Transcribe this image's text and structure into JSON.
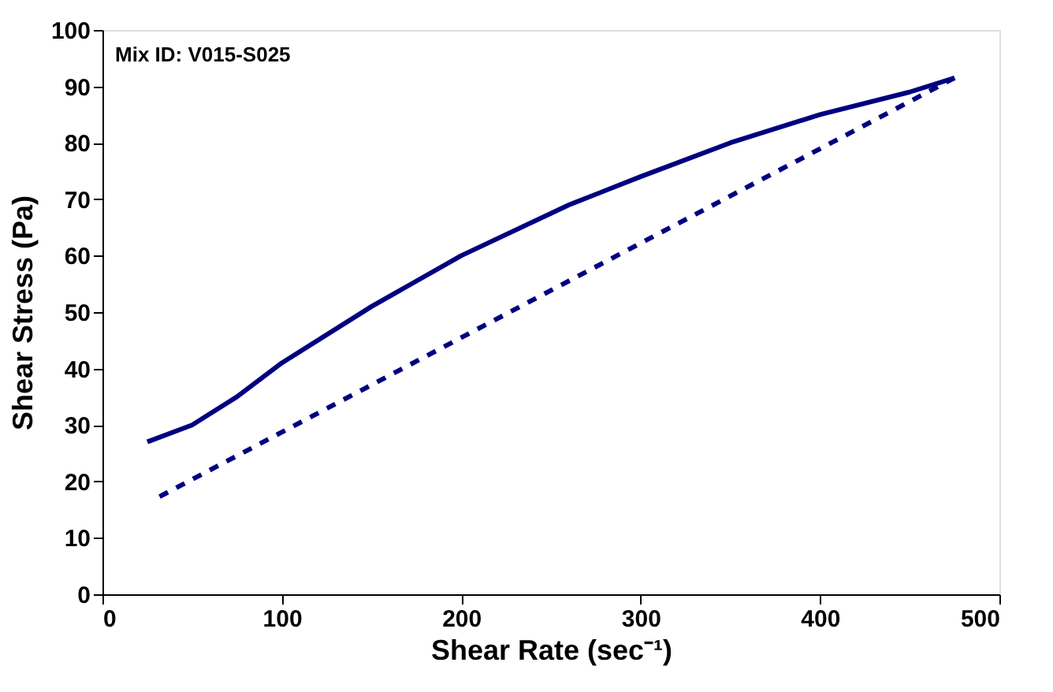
{
  "chart_data": {
    "type": "line",
    "xlabel": "Shear Rate (sec⁻¹)",
    "ylabel": "Shear Stress (Pa)",
    "annotations": [
      "Mix ID: V015-S025"
    ],
    "xlim": [
      0,
      500
    ],
    "ylim": [
      0,
      100
    ],
    "xticks": [
      0,
      100,
      200,
      300,
      400,
      500
    ],
    "yticks": [
      0,
      10,
      20,
      30,
      40,
      50,
      60,
      70,
      80,
      90,
      100
    ],
    "grid": false,
    "marker": "none",
    "series": [
      {
        "color": "#000080",
        "line_style": "solid",
        "x": [
          25,
          50,
          75,
          100,
          150,
          200,
          260,
          300,
          350,
          400,
          450,
          475
        ],
        "values": [
          27,
          30,
          35,
          41,
          51,
          60,
          69,
          74,
          80,
          85,
          89,
          91.5
        ]
      },
      {
        "color": "#000080",
        "line_style": "dashed",
        "x": [
          475,
          230,
          30
        ],
        "values": [
          91.5,
          50.5,
          17
        ]
      }
    ]
  }
}
